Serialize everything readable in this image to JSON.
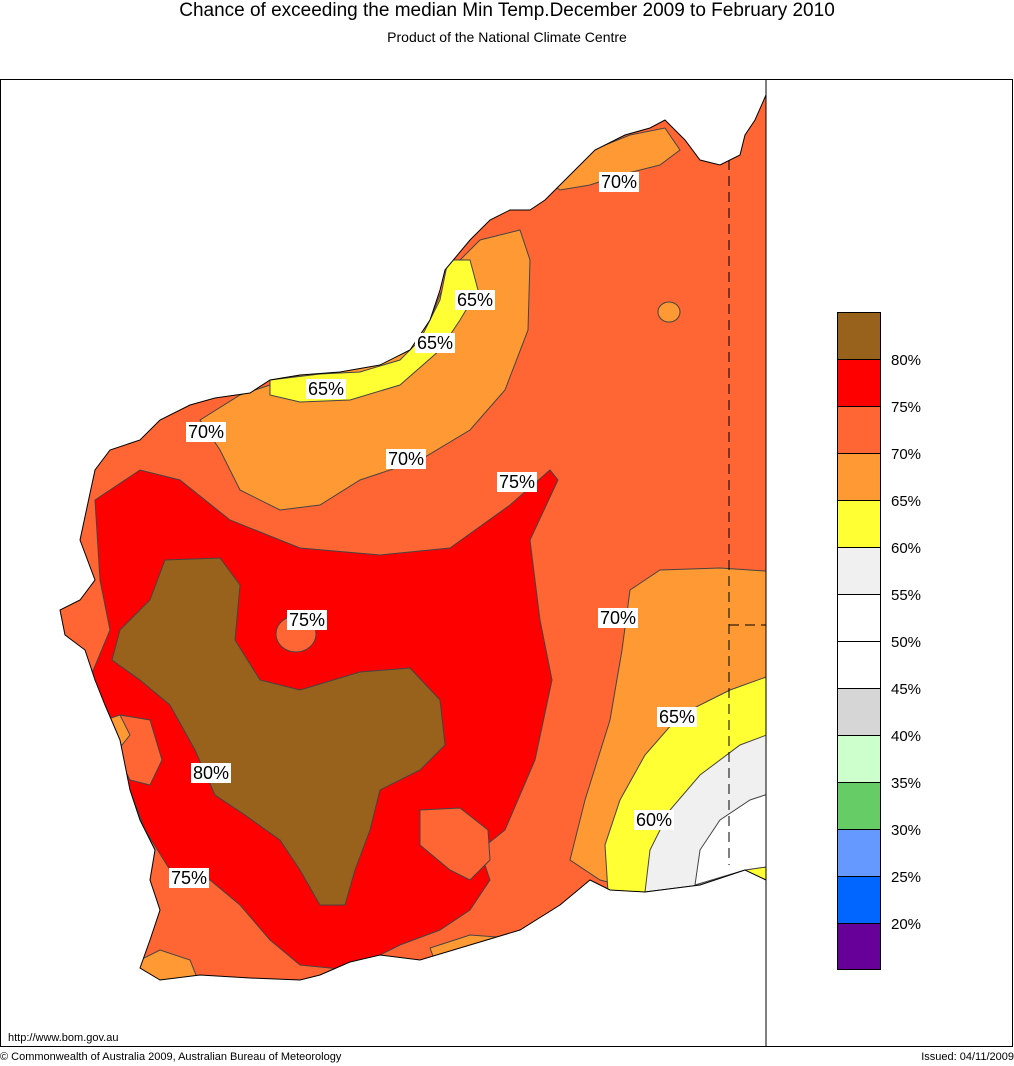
{
  "header": {
    "title": "Chance of exceeding the median Min Temp.December 2009 to February 2010",
    "subtitle": "Product of the National Climate Centre"
  },
  "legend": {
    "swatches": [
      {
        "color": "#99621c"
      },
      {
        "color": "#ff0000"
      },
      {
        "color": "#ff6633"
      },
      {
        "color": "#ff9933"
      },
      {
        "color": "#ffff33"
      },
      {
        "color": "#f0f0f0"
      },
      {
        "color": "#ffffff"
      },
      {
        "color": "#ffffff"
      },
      {
        "color": "#d6d6d6"
      },
      {
        "color": "#ccffcc"
      },
      {
        "color": "#66cc66"
      },
      {
        "color": "#6699ff"
      },
      {
        "color": "#0066ff"
      },
      {
        "color": "#660099"
      }
    ],
    "labels": [
      "80%",
      "75%",
      "70%",
      "65%",
      "60%",
      "55%",
      "50%",
      "45%",
      "40%",
      "35%",
      "30%",
      "25%",
      "20%"
    ]
  },
  "contour_labels": [
    {
      "text": "70%"
    },
    {
      "text": "65%"
    },
    {
      "text": "65%"
    },
    {
      "text": "65%"
    },
    {
      "text": "70%"
    },
    {
      "text": "70%"
    },
    {
      "text": "75%"
    },
    {
      "text": "75%"
    },
    {
      "text": "70%"
    },
    {
      "text": "65%"
    },
    {
      "text": "80%"
    },
    {
      "text": "60%"
    },
    {
      "text": "75%"
    }
  ],
  "footer": {
    "url": "http://www.bom.gov.au",
    "copyright": "© Commonwealth of Australia 2009, Australian Bureau of Meteorology",
    "issued": "Issued: 04/11/2009"
  }
}
